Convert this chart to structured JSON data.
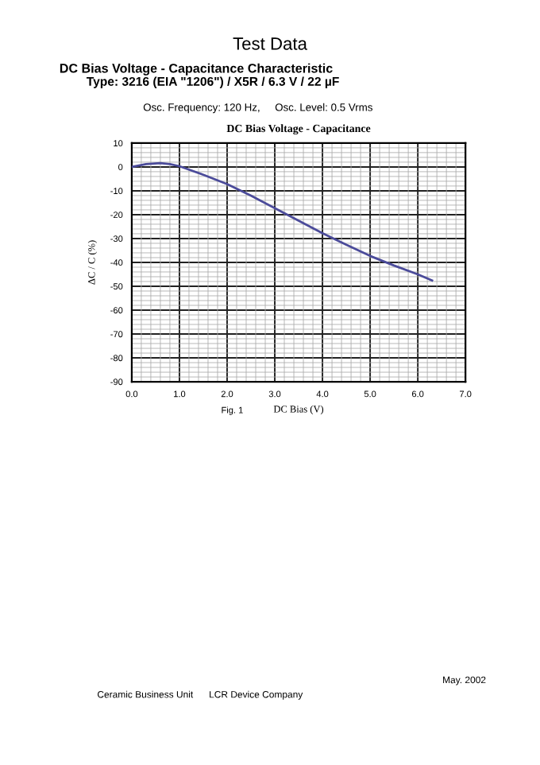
{
  "chart_data": {
    "type": "line",
    "title": "DC Bias Voltage - Capacitance",
    "xlabel": "DC Bias (V)",
    "ylabel": "ΔC / C (%)",
    "x": [
      0,
      0.3,
      0.6,
      0.8,
      1.0,
      1.5,
      2.0,
      2.5,
      3.0,
      3.5,
      4.0,
      4.5,
      5.0,
      5.5,
      6.0,
      6.3
    ],
    "series": [
      {
        "color": "#4b4b9a",
        "values": [
          0,
          1.2,
          1.6,
          1.2,
          0.3,
          -3.3,
          -7.2,
          -12,
          -17.3,
          -22.5,
          -27.8,
          -32.6,
          -37.3,
          -41.3,
          -45,
          -47.6
        ]
      }
    ],
    "xlim": [
      0,
      7
    ],
    "xticks": [
      {
        "value": 0,
        "label": "0.0"
      },
      {
        "value": 1,
        "label": "1.0"
      },
      {
        "value": 2,
        "label": "2.0"
      },
      {
        "value": 3,
        "label": "3.0"
      },
      {
        "value": 4,
        "label": "4.0"
      },
      {
        "value": 5,
        "label": "5.0"
      },
      {
        "value": 6,
        "label": "6.0"
      },
      {
        "value": 7,
        "label": "7.0"
      }
    ],
    "ylim": [
      -90,
      10
    ],
    "yticks": [
      10,
      0,
      -10,
      -20,
      -30,
      -40,
      -50,
      -60,
      -70,
      -80,
      -90
    ],
    "grid": true,
    "marker": "none",
    "line_style": "solid",
    "annotations": [
      "Test Data",
      "DC Bias Voltage - Capacitance Characteristic",
      "Type: 3216 (EIA \"1206\") / X5R / 6.3 V / 22 µF",
      "Osc. Frequency: 120 Hz,     Osc. Level: 0.5 Vrms",
      "Fig. 1",
      "May. 2002",
      "Ceramic Business Unit      LCR Device Company"
    ]
  }
}
